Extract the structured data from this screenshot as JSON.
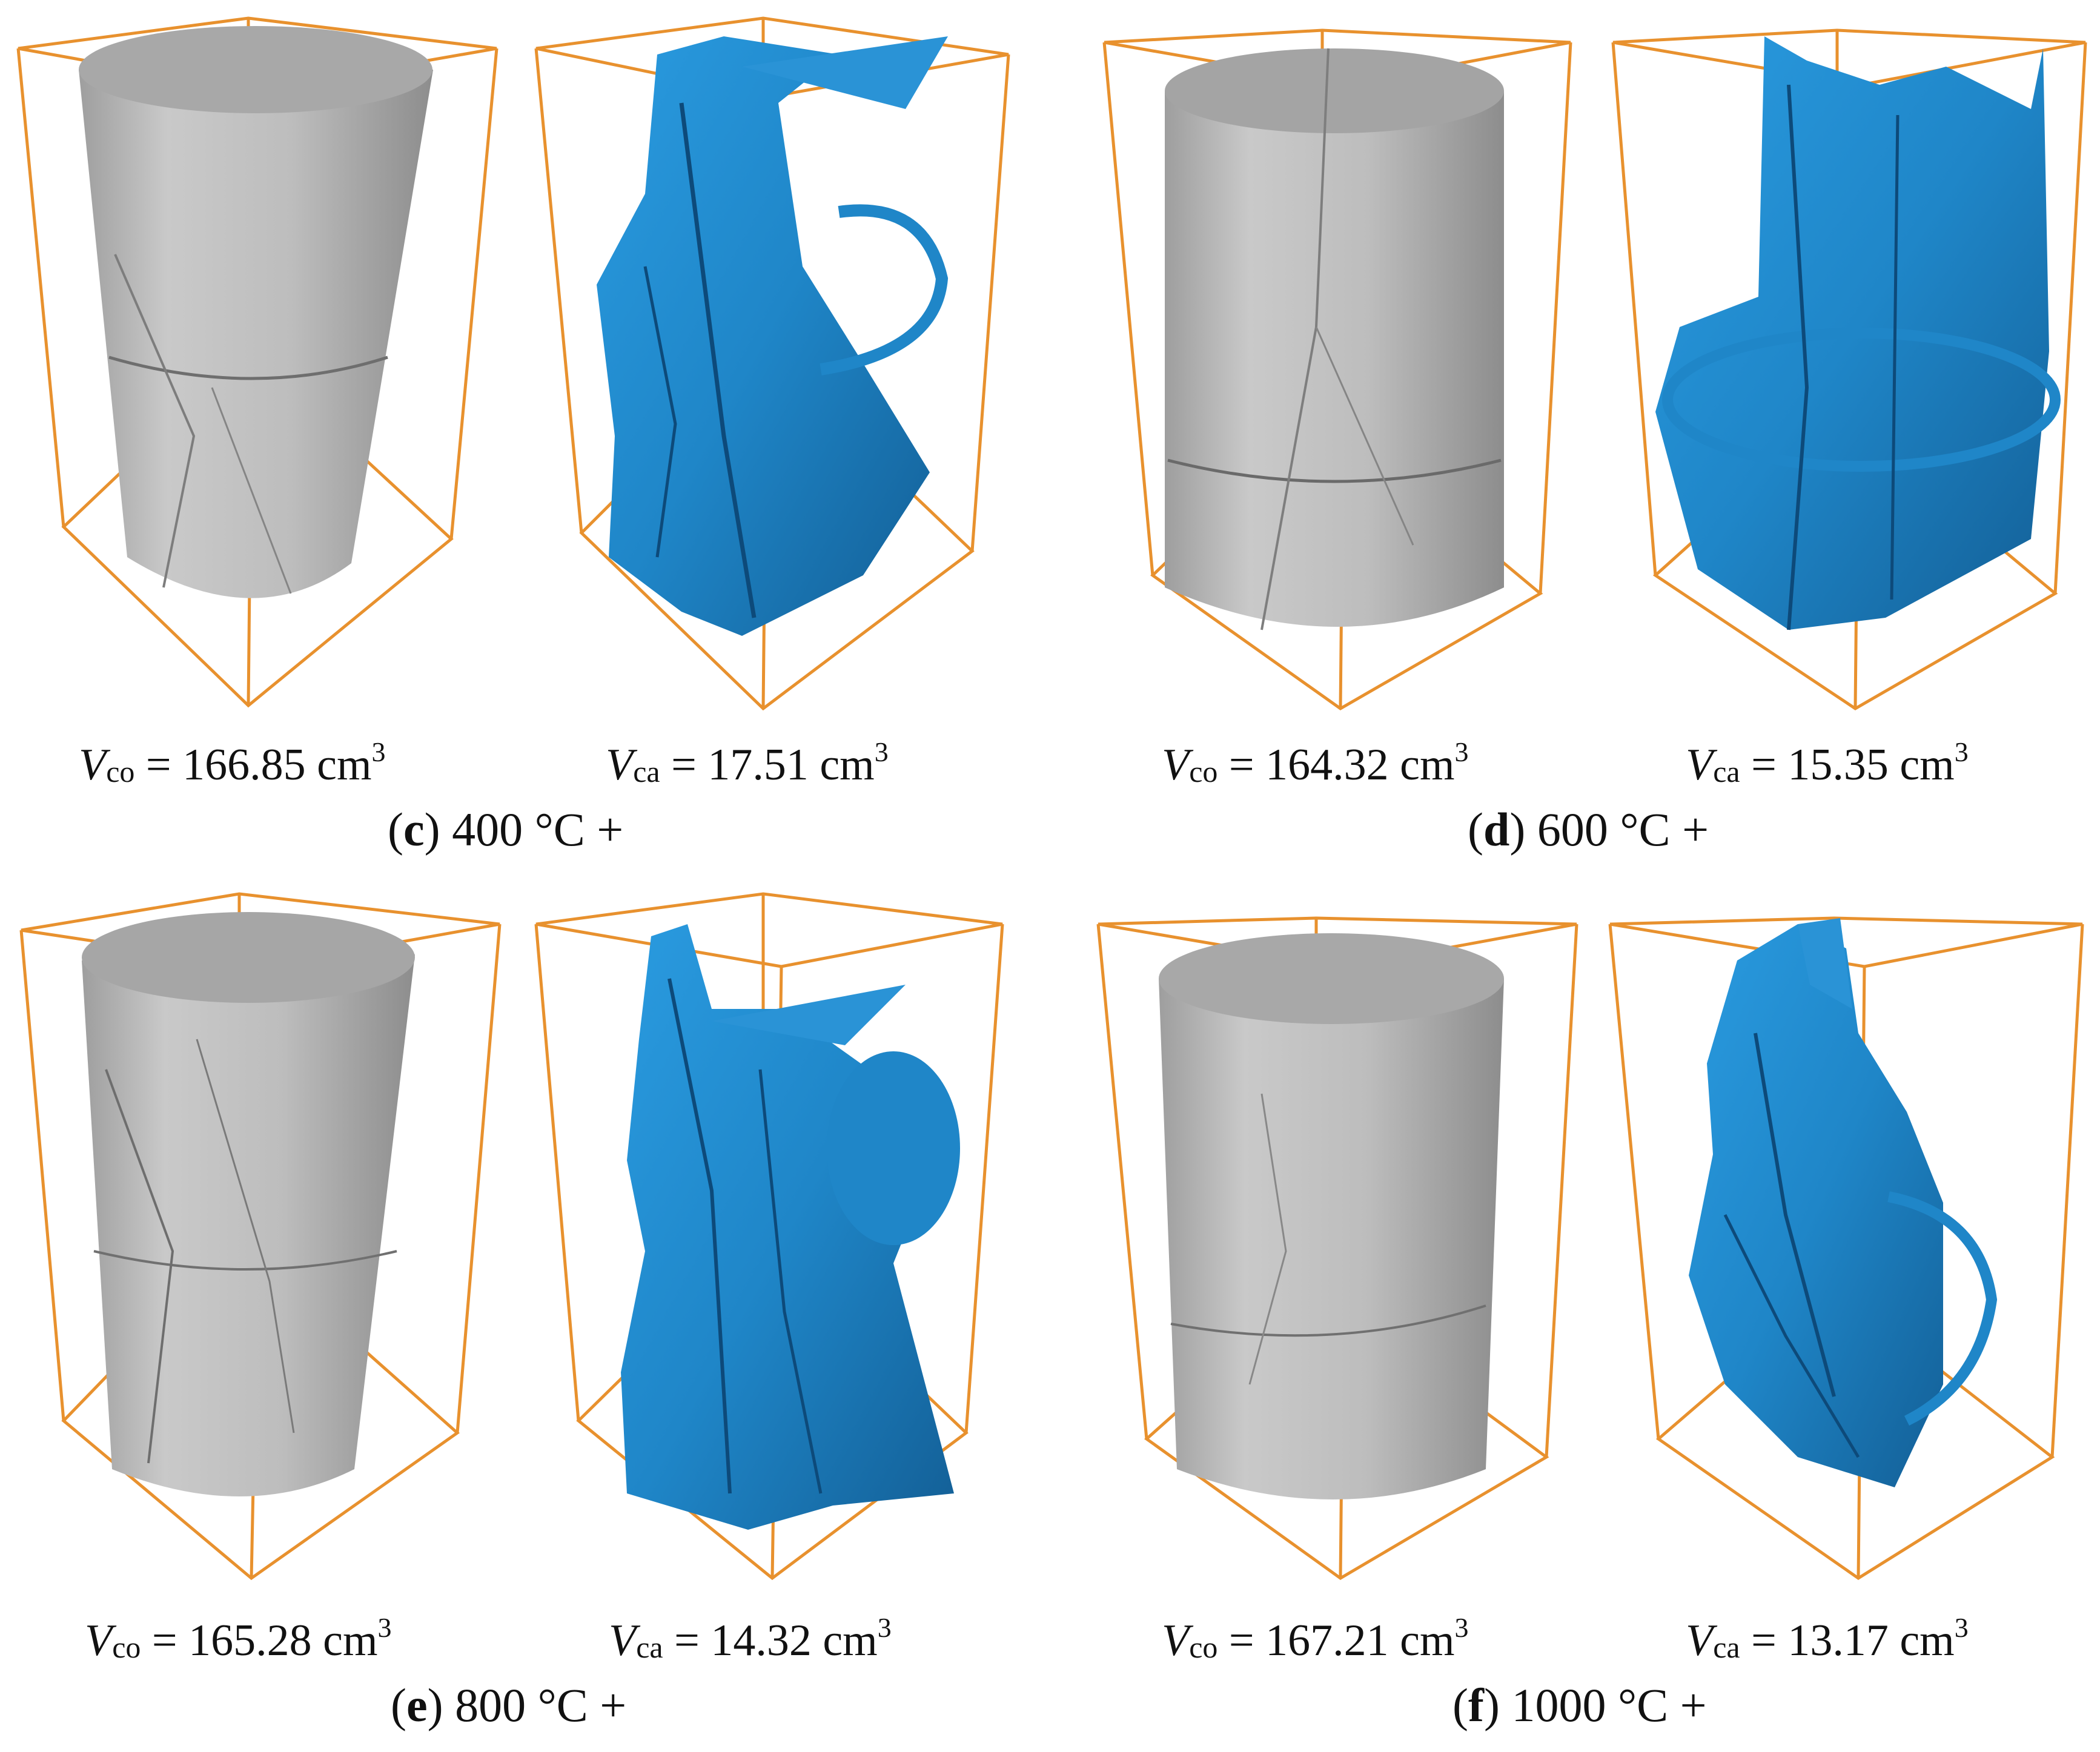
{
  "panels": [
    {
      "letter": "c",
      "temperature": "400 °C +",
      "core": {
        "symbol": "V",
        "sub": "co",
        "value": "= 166.85 cm",
        "sup": "3"
      },
      "crack": {
        "symbol": "V",
        "sub": "ca",
        "value": "= 17.51 cm",
        "sup": "3"
      }
    },
    {
      "letter": "d",
      "temperature": "600 °C +",
      "core": {
        "symbol": "V",
        "sub": "co",
        "value": "= 164.32 cm",
        "sup": "3"
      },
      "crack": {
        "symbol": "V",
        "sub": "ca",
        "value": "= 15.35 cm",
        "sup": "3"
      }
    },
    {
      "letter": "e",
      "temperature": "800 °C +",
      "core": {
        "symbol": "V",
        "sub": "co",
        "value": "= 165.28 cm",
        "sup": "3"
      },
      "crack": {
        "symbol": "V",
        "sub": "ca",
        "value": "= 14.32 cm",
        "sup": "3"
      }
    },
    {
      "letter": "f",
      "temperature": "1000 °C +",
      "core": {
        "symbol": "V",
        "sub": "co",
        "value": "= 167.21 cm",
        "sup": "3"
      },
      "crack": {
        "symbol": "V",
        "sub": "ca",
        "value": "= 13.17 cm",
        "sup": "3"
      }
    }
  ],
  "colors": {
    "box": "#e8912e",
    "cylinder": "#b9b9b9",
    "crack": "#1f86c8",
    "crack_dark": "#0d4a7a"
  }
}
